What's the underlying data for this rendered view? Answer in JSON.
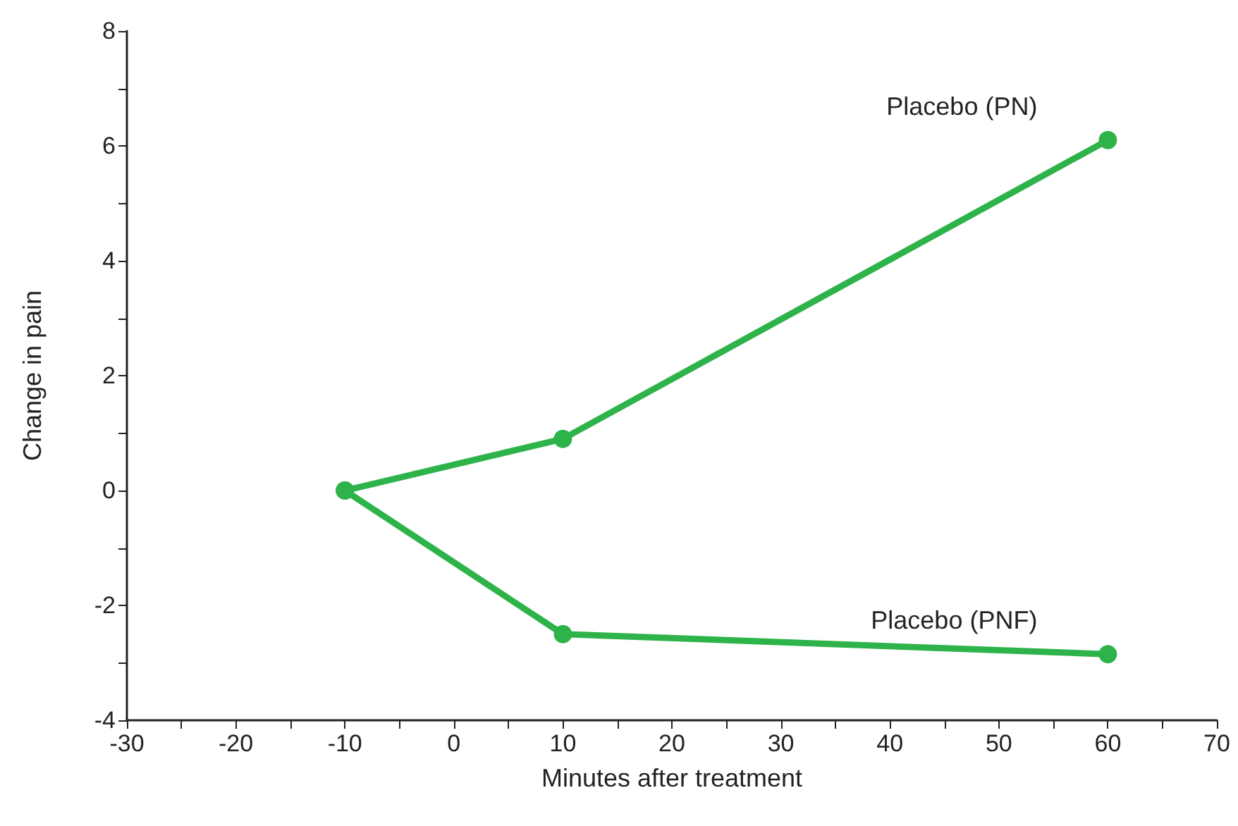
{
  "chart_data": {
    "type": "line",
    "xlabel": "Minutes after treatment",
    "ylabel": "Change in pain",
    "xlim": [
      -30,
      70
    ],
    "ylim": [
      -4,
      8
    ],
    "xticks": [
      -30,
      {
        "value": -25,
        "label": null
      },
      -20,
      {
        "value": -15,
        "label": null
      },
      -10,
      {
        "value": -5,
        "label": null
      },
      0,
      {
        "value": 5,
        "label": null
      },
      10,
      {
        "value": 15,
        "label": null
      },
      20,
      {
        "value": 25,
        "label": null
      },
      30,
      {
        "value": 35,
        "label": null
      },
      40,
      {
        "value": 45,
        "label": null
      },
      50,
      {
        "value": 55,
        "label": null
      },
      60,
      {
        "value": 65,
        "label": null
      },
      70
    ],
    "yticks": [
      -4,
      {
        "value": -3,
        "label": null
      },
      -2,
      {
        "value": -1,
        "label": null
      },
      0,
      {
        "value": 1,
        "label": null
      },
      2,
      {
        "value": 3,
        "label": null
      },
      4,
      {
        "value": 5,
        "label": null
      },
      6,
      {
        "value": 7,
        "label": null
      },
      8
    ],
    "grid": false,
    "legend": false,
    "marker": "circle",
    "line_style": "solid",
    "series": [
      {
        "name": "Placebo (PN)",
        "color": "#2db34a",
        "x": [
          -10,
          10,
          60
        ],
        "values": [
          0,
          0.9,
          6.1
        ]
      },
      {
        "name": "Placebo (PNF)",
        "color": "#2db34a",
        "x": [
          -10,
          10,
          60
        ],
        "values": [
          0,
          -2.5,
          -2.85
        ]
      }
    ]
  }
}
